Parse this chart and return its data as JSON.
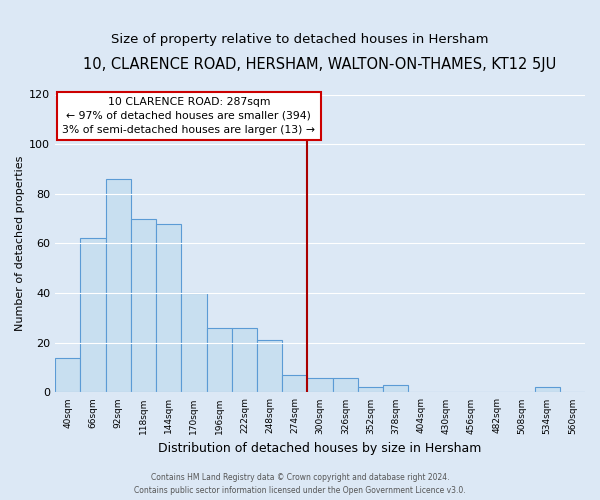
{
  "title": "10, CLARENCE ROAD, HERSHAM, WALTON-ON-THAMES, KT12 5JU",
  "subtitle": "Size of property relative to detached houses in Hersham",
  "xlabel": "Distribution of detached houses by size in Hersham",
  "ylabel": "Number of detached properties",
  "bar_labels": [
    "40sqm",
    "66sqm",
    "92sqm",
    "118sqm",
    "144sqm",
    "170sqm",
    "196sqm",
    "222sqm",
    "248sqm",
    "274sqm",
    "300sqm",
    "326sqm",
    "352sqm",
    "378sqm",
    "404sqm",
    "430sqm",
    "456sqm",
    "482sqm",
    "508sqm",
    "534sqm",
    "560sqm"
  ],
  "bar_values": [
    14,
    62,
    86,
    70,
    68,
    40,
    26,
    26,
    21,
    7,
    6,
    6,
    2,
    3,
    0,
    0,
    0,
    0,
    0,
    2,
    0
  ],
  "bar_color": "#c8dff0",
  "bar_edge_color": "#5b9bd5",
  "vline_color": "#aa0000",
  "annotation_title": "10 CLARENCE ROAD: 287sqm",
  "annotation_line1": "← 97% of detached houses are smaller (394)",
  "annotation_line2": "3% of semi-detached houses are larger (13) →",
  "annotation_box_color": "#ffffff",
  "annotation_box_edge": "#cc0000",
  "footer1": "Contains HM Land Registry data © Crown copyright and database right 2024.",
  "footer2": "Contains public sector information licensed under the Open Government Licence v3.0.",
  "ylim": [
    0,
    120
  ],
  "yticks": [
    0,
    20,
    40,
    60,
    80,
    100,
    120
  ],
  "bg_color": "#dce8f5",
  "title_fontsize": 10.5,
  "subtitle_fontsize": 9.5,
  "ylabel_fontsize": 8,
  "xlabel_fontsize": 9
}
